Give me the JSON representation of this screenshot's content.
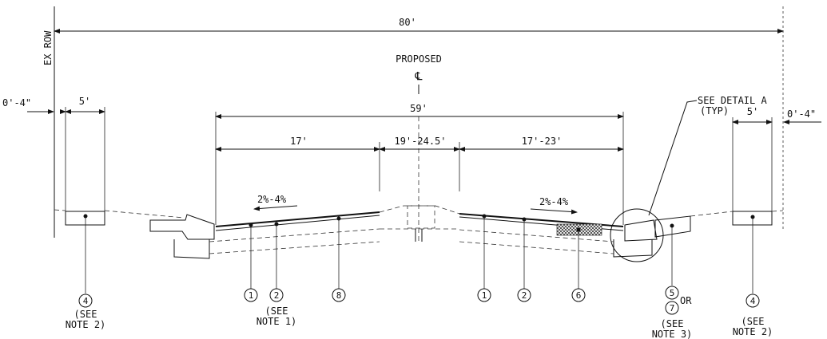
{
  "labels": {
    "row": "EX ROW",
    "total_width": "80'",
    "proposed": "PROPOSED",
    "centerline": "℄",
    "width_59": "59'",
    "left_17": "17'",
    "center_range": "19'-24.5'",
    "right_range": "17'-23'",
    "left_offset": "0'-4\"",
    "right_offset": "0'-4\"",
    "left_walk": "5'",
    "right_walk": "5'",
    "left_slope": "2%-4%",
    "right_slope": "2%-4%",
    "see_detail": "SEE DETAIL A",
    "typ": "(TYP)",
    "see": "(SEE",
    "or": "OR",
    "note1": "NOTE 1)",
    "note2": "NOTE 2)",
    "note3": "NOTE 3)"
  },
  "callouts": {
    "c1a": "1",
    "c2a": "2",
    "c8": "8",
    "c1b": "1",
    "c2b": "2",
    "c6": "6",
    "c5": "5",
    "c7": "7",
    "c4a": "4",
    "c4b": "4"
  }
}
